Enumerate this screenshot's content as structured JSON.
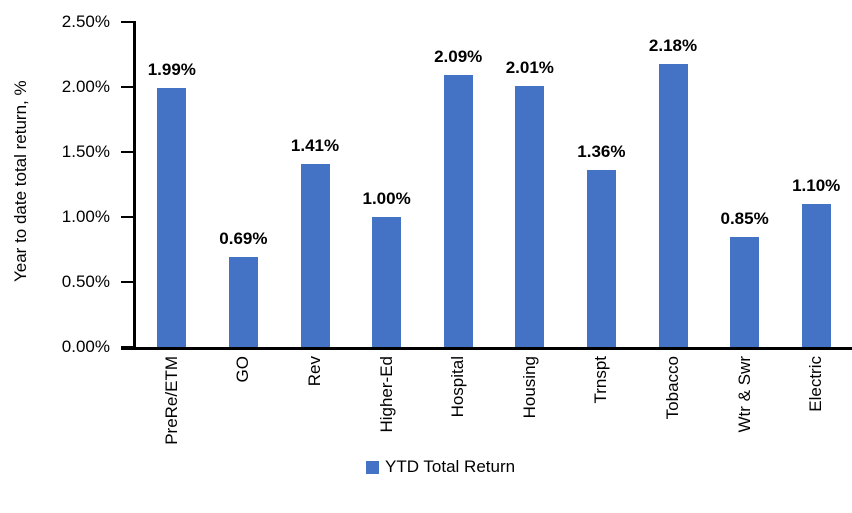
{
  "chart_data": {
    "type": "bar",
    "title": "",
    "categories": [
      "PreRe/ETM",
      "GO",
      "Rev",
      "Higher-Ed",
      "Hospital",
      "Housing",
      "Trnspt",
      "Tobacco",
      "Wtr & Swr",
      "Electric"
    ],
    "series": [
      {
        "name": "YTD Total Return",
        "values": [
          1.99,
          0.69,
          1.41,
          1.0,
          2.09,
          2.01,
          1.36,
          2.18,
          0.85,
          1.1
        ]
      }
    ],
    "data_labels": [
      "1.99%",
      "0.69%",
      "1.41%",
      "1.00%",
      "2.09%",
      "2.01%",
      "1.36%",
      "2.18%",
      "0.85%",
      "1.10%"
    ],
    "xlabel": "",
    "ylabel": "Year to date total return, %",
    "ylim": [
      0,
      2.5
    ],
    "yticks": [
      {
        "value": 0.0,
        "label": "0.00%"
      },
      {
        "value": 0.5,
        "label": "0.50%"
      },
      {
        "value": 1.0,
        "label": "1.00%"
      },
      {
        "value": 1.5,
        "label": "1.50%"
      },
      {
        "value": 2.0,
        "label": "2.00%"
      },
      {
        "value": 2.5,
        "label": "2.50%"
      }
    ],
    "grid": false,
    "bar_color": "#4472C4",
    "axis_color": "#000000",
    "label_color": "#000000",
    "legend": {
      "position": "bottom",
      "entries": [
        {
          "label": "YTD Total Return",
          "color": "#4472C4"
        }
      ]
    }
  }
}
